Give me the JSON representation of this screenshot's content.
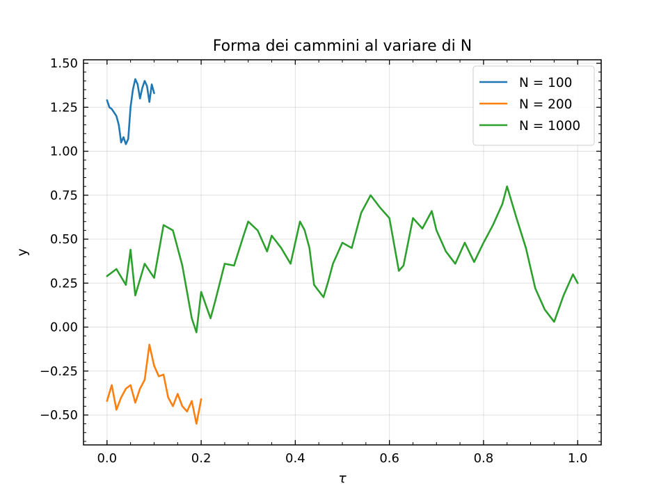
{
  "chart_data": {
    "type": "line",
    "title": "Forma dei cammini al variare di N",
    "xlabel": "τ",
    "ylabel": "y",
    "xlim": [
      -0.05,
      1.05
    ],
    "ylim": [
      -0.67,
      1.52
    ],
    "xticks": [
      0.0,
      0.2,
      0.4,
      0.6,
      0.8,
      1.0
    ],
    "xtick_labels": [
      "0.0",
      "0.2",
      "0.4",
      "0.6",
      "0.8",
      "1.0"
    ],
    "yticks": [
      -0.5,
      -0.25,
      0.0,
      0.25,
      0.5,
      0.75,
      1.0,
      1.25,
      1.5
    ],
    "ytick_labels": [
      "−0.50",
      "−0.25",
      "0.00",
      "0.25",
      "0.50",
      "0.75",
      "1.00",
      "1.25",
      "1.50"
    ],
    "grid": true,
    "legend_position": "upper right",
    "series": [
      {
        "name": "N = 100",
        "color": "#1f77b4",
        "x": [
          0.0,
          0.005,
          0.01,
          0.015,
          0.02,
          0.025,
          0.03,
          0.035,
          0.04,
          0.045,
          0.05,
          0.055,
          0.06,
          0.065,
          0.07,
          0.075,
          0.08,
          0.085,
          0.09,
          0.095,
          0.1
        ],
        "y": [
          1.29,
          1.25,
          1.24,
          1.22,
          1.2,
          1.15,
          1.05,
          1.08,
          1.04,
          1.07,
          1.25,
          1.35,
          1.41,
          1.38,
          1.3,
          1.36,
          1.4,
          1.37,
          1.28,
          1.38,
          1.33
        ]
      },
      {
        "name": "N = 200",
        "color": "#ff7f0e",
        "x": [
          0.0,
          0.01,
          0.02,
          0.03,
          0.04,
          0.05,
          0.06,
          0.07,
          0.08,
          0.09,
          0.1,
          0.11,
          0.12,
          0.13,
          0.14,
          0.15,
          0.16,
          0.17,
          0.18,
          0.19,
          0.2
        ],
        "y": [
          -0.42,
          -0.33,
          -0.47,
          -0.4,
          -0.35,
          -0.33,
          -0.43,
          -0.35,
          -0.3,
          -0.1,
          -0.22,
          -0.28,
          -0.27,
          -0.4,
          -0.45,
          -0.38,
          -0.45,
          -0.48,
          -0.42,
          -0.55,
          -0.41
        ]
      },
      {
        "name": "N = 1000",
        "color": "#2ca02c",
        "x": [
          0.0,
          0.02,
          0.04,
          0.05,
          0.06,
          0.08,
          0.1,
          0.12,
          0.14,
          0.16,
          0.18,
          0.19,
          0.2,
          0.22,
          0.23,
          0.25,
          0.27,
          0.29,
          0.3,
          0.32,
          0.34,
          0.35,
          0.37,
          0.39,
          0.41,
          0.42,
          0.43,
          0.44,
          0.46,
          0.47,
          0.48,
          0.5,
          0.52,
          0.54,
          0.56,
          0.58,
          0.6,
          0.62,
          0.63,
          0.65,
          0.67,
          0.69,
          0.7,
          0.72,
          0.74,
          0.76,
          0.78,
          0.8,
          0.82,
          0.84,
          0.85,
          0.87,
          0.89,
          0.91,
          0.93,
          0.95,
          0.97,
          0.99,
          1.0
        ],
        "y": [
          0.29,
          0.33,
          0.24,
          0.44,
          0.18,
          0.36,
          0.28,
          0.58,
          0.55,
          0.35,
          0.05,
          -0.03,
          0.2,
          0.05,
          0.15,
          0.36,
          0.35,
          0.52,
          0.6,
          0.55,
          0.43,
          0.52,
          0.45,
          0.36,
          0.6,
          0.55,
          0.45,
          0.24,
          0.17,
          0.26,
          0.36,
          0.48,
          0.45,
          0.65,
          0.75,
          0.68,
          0.62,
          0.32,
          0.35,
          0.62,
          0.56,
          0.66,
          0.55,
          0.43,
          0.36,
          0.48,
          0.37,
          0.48,
          0.58,
          0.7,
          0.8,
          0.62,
          0.45,
          0.22,
          0.1,
          0.03,
          0.18,
          0.3,
          0.25
        ]
      }
    ]
  }
}
